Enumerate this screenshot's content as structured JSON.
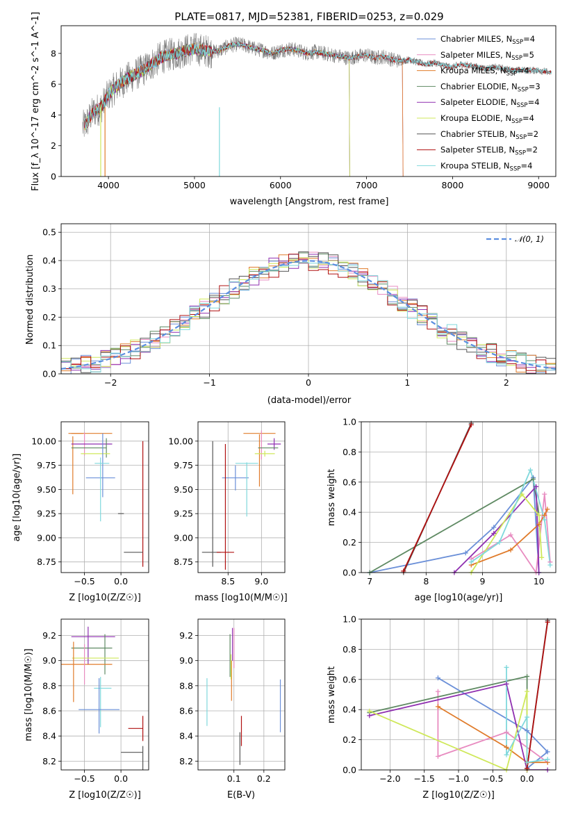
{
  "figure": {
    "title": "PLATE=0817, MJD=52381, FIBERID=0253, z=0.029"
  },
  "models": [
    {
      "id": "chabrier_miles",
      "label": "Chabrier MILES, N",
      "sub": "SSP",
      "eq": "=4",
      "color": "#6a8fd8"
    },
    {
      "id": "salpeter_miles",
      "label": "Salpeter MILES, N",
      "sub": "SSP",
      "eq": "=5",
      "color": "#e88bc0"
    },
    {
      "id": "kroupa_miles",
      "label": "Kroupa MILES, N",
      "sub": "SSP",
      "eq": "=4",
      "color": "#e07b2a"
    },
    {
      "id": "chabrier_elodie",
      "label": "Chabrier ELODIE, N",
      "sub": "SSP",
      "eq": "=3",
      "color": "#5f8a63"
    },
    {
      "id": "salpeter_elodie",
      "label": "Salpeter ELODIE, N",
      "sub": "SSP",
      "eq": "=4",
      "color": "#8f2fb0"
    },
    {
      "id": "kroupa_elodie",
      "label": "Kroupa ELODIE, N",
      "sub": "SSP",
      "eq": "=4",
      "color": "#cfe85a"
    },
    {
      "id": "chabrier_stelib",
      "label": "Chabrier STELIB, N",
      "sub": "SSP",
      "eq": "=2",
      "color": "#555555"
    },
    {
      "id": "salpeter_stelib",
      "label": "Salpeter STELIB, N",
      "sub": "SSP",
      "eq": "=2",
      "color": "#b01010"
    },
    {
      "id": "kroupa_stelib",
      "label": "Kroupa STELIB, N",
      "sub": "SSP",
      "eq": "=4",
      "color": "#7fd8dc"
    }
  ],
  "chart_data": [
    {
      "id": "spectrum",
      "type": "line",
      "xlabel": "wavelength [Angstrom, rest frame]",
      "ylabel": "Flux [f_λ 10^-17 erg cm^-2 s^-1 A^-1]",
      "xlim": [
        3450,
        9200
      ],
      "ylim": [
        0,
        9.8
      ],
      "xticks": [
        4000,
        5000,
        6000,
        7000,
        8000,
        9000
      ],
      "yticks": [
        0,
        2,
        4,
        6,
        8
      ],
      "grid": false,
      "legend": "top-right",
      "data_color": "#7a7a7a",
      "data_curve": {
        "x": [
          3700,
          3750,
          3800,
          3850,
          3900,
          3950,
          4000,
          4050,
          4100,
          4200,
          4300,
          4400,
          4500,
          4600,
          4700,
          4800,
          4900,
          5000,
          5100,
          5200,
          5300,
          5400,
          5500,
          5600,
          5700,
          5800,
          5900,
          6000,
          6100,
          6200,
          6300,
          6400,
          6500,
          6600,
          6700,
          6800,
          6900,
          7000,
          7100,
          7200,
          7300,
          7400,
          7500,
          7600,
          7700,
          7800,
          7900,
          8000,
          8100,
          8200,
          8300,
          8400,
          8500,
          8600,
          8700,
          8800,
          8900,
          9000,
          9100
        ],
        "y": [
          3.2,
          3.5,
          4.0,
          4.3,
          4.4,
          4.8,
          5.3,
          5.6,
          5.9,
          6.3,
          6.6,
          6.9,
          7.3,
          7.7,
          7.9,
          8.0,
          8.2,
          8.3,
          8.2,
          8.1,
          8.2,
          8.5,
          8.6,
          8.5,
          8.3,
          8.2,
          8.0,
          8.2,
          8.3,
          8.2,
          8.0,
          8.1,
          8.0,
          7.9,
          7.8,
          7.7,
          7.8,
          7.9,
          7.7,
          7.8,
          7.6,
          7.5,
          7.6,
          7.4,
          7.3,
          7.4,
          7.2,
          7.1,
          7.3,
          7.2,
          7.1,
          7.0,
          7.1,
          7.0,
          6.9,
          6.9,
          6.9,
          6.9,
          6.8
        ]
      },
      "model_curve_y_scale": 1.0
    },
    {
      "id": "residuals",
      "type": "line",
      "xlabel": "(data-model)/error",
      "ylabel": "Normed distribution",
      "xlim": [
        -2.5,
        2.5
      ],
      "ylim": [
        0,
        0.53
      ],
      "xticks": [
        -2,
        -1,
        0,
        1,
        2
      ],
      "yticks": [
        0,
        0.1,
        0.2,
        0.3,
        0.4,
        0.5
      ],
      "grid": true,
      "legend": "top-right",
      "reference_curve": {
        "name": "N(0,1)",
        "color": "#5b8ee0",
        "mu": 0,
        "sigma": 1
      },
      "bin_width": 0.1
    },
    {
      "id": "age_vs_Z",
      "type": "scatter",
      "xlabel": "Z [log10(Z/Z☉)]",
      "ylabel": "age [log10(age/yr)]",
      "xlim": [
        -0.82,
        0.38
      ],
      "ylim": [
        8.64,
        10.2
      ],
      "xticks": [
        -0.5,
        0.0
      ],
      "yticks": [
        8.75,
        9.0,
        9.25,
        9.5,
        9.75,
        10.0
      ],
      "grid": true,
      "points": [
        {
          "model": "kroupa_miles",
          "x": -0.62,
          "xerr": 0.1,
          "y": 10.08,
          "yerr": 0.0
        },
        {
          "model": "kroupa_miles",
          "x": -0.4,
          "xerr": 0.28,
          "y": 10.08,
          "yerr": 0.0
        },
        {
          "model": "kroupa_miles",
          "x": -0.66,
          "xerr": 0.0,
          "y": 9.75,
          "yerr": 0.3
        },
        {
          "model": "salpeter_miles",
          "x": -0.5,
          "xerr": 0.0,
          "y": 9.97,
          "yerr": 0.12
        },
        {
          "model": "salpeter_elodie",
          "x": -0.4,
          "xerr": 0.28,
          "y": 9.97,
          "yerr": 0.0
        },
        {
          "model": "chabrier_elodie",
          "x": -0.44,
          "xerr": 0.24,
          "y": 9.93,
          "yerr": 0.0
        },
        {
          "model": "chabrier_elodie",
          "x": -0.2,
          "xerr": 0.0,
          "y": 9.93,
          "yerr": 0.1
        },
        {
          "model": "kroupa_elodie",
          "x": -0.35,
          "xerr": 0.2,
          "y": 9.87,
          "yerr": 0.0
        },
        {
          "model": "chabrier_miles",
          "x": -0.25,
          "xerr": 0.0,
          "y": 9.75,
          "yerr": 0.33
        },
        {
          "model": "chabrier_miles",
          "x": -0.28,
          "xerr": 0.2,
          "y": 9.62,
          "yerr": 0.0
        },
        {
          "model": "kroupa_stelib",
          "x": -0.26,
          "xerr": 0.1,
          "y": 9.77,
          "yerr": 0.0
        },
        {
          "model": "kroupa_stelib",
          "x": -0.28,
          "xerr": 0.0,
          "y": 9.5,
          "yerr": 0.33
        },
        {
          "model": "chabrier_stelib",
          "x": 0.0,
          "xerr": 0.04,
          "y": 9.25,
          "yerr": 0.0
        },
        {
          "model": "salpeter_stelib",
          "x": 0.3,
          "xerr": 0.0,
          "y": 9.35,
          "yerr": 0.65
        },
        {
          "model": "chabrier_stelib",
          "x": 0.17,
          "xerr": 0.13,
          "y": 8.85,
          "yerr": 0.0
        }
      ]
    },
    {
      "id": "age_vs_mass",
      "type": "scatter",
      "xlabel": "mass [log10(M/M☉)]",
      "ylabel": "",
      "xlim": [
        8.05,
        9.35
      ],
      "ylim": [
        8.64,
        10.2
      ],
      "xticks": [
        8.5,
        9.0
      ],
      "yticks": [
        8.75,
        9.0,
        9.25,
        9.5,
        9.75,
        10.0
      ],
      "grid": true,
      "points": [
        {
          "model": "kroupa_miles",
          "x": 8.97,
          "xerr": 0.24,
          "y": 10.08,
          "yerr": 0.0
        },
        {
          "model": "kroupa_miles",
          "x": 8.97,
          "xerr": 0.0,
          "y": 9.8,
          "yerr": 0.27
        },
        {
          "model": "salpeter_miles",
          "x": 9.0,
          "xerr": 0.0,
          "y": 9.96,
          "yerr": 0.15
        },
        {
          "model": "salpeter_elodie",
          "x": 9.19,
          "xerr": 0.1,
          "y": 9.97,
          "yerr": 0.06
        },
        {
          "model": "chabrier_elodie",
          "x": 9.1,
          "xerr": 0.15,
          "y": 9.93,
          "yerr": 0.0
        },
        {
          "model": "kroupa_elodie",
          "x": 9.05,
          "xerr": 0.15,
          "y": 9.87,
          "yerr": 0.03
        },
        {
          "model": "chabrier_miles",
          "x": 8.61,
          "xerr": 0.2,
          "y": 9.62,
          "yerr": 0.13
        },
        {
          "model": "kroupa_stelib",
          "x": 8.78,
          "xerr": 0.17,
          "y": 9.77,
          "yerr": 0.0
        },
        {
          "model": "kroupa_stelib",
          "x": 8.78,
          "xerr": 0.0,
          "y": 9.5,
          "yerr": 0.28
        },
        {
          "model": "chabrier_stelib",
          "x": 8.27,
          "xerr": 0.0,
          "y": 9.35,
          "yerr": 0.65
        },
        {
          "model": "chabrier_stelib",
          "x": 8.25,
          "xerr": 0.14,
          "y": 8.85,
          "yerr": 0.0
        },
        {
          "model": "salpeter_stelib",
          "x": 8.46,
          "xerr": 0.0,
          "y": 9.32,
          "yerr": 0.65
        },
        {
          "model": "salpeter_stelib",
          "x": 8.46,
          "xerr": 0.13,
          "y": 8.85,
          "yerr": 0.0
        }
      ]
    },
    {
      "id": "mass_weight_vs_age",
      "type": "line",
      "xlabel": "age [log10(age/yr)]",
      "ylabel": "mass weight",
      "xlim": [
        6.85,
        10.3
      ],
      "ylim": [
        0,
        1.0
      ],
      "xticks": [
        7,
        8,
        9,
        10
      ],
      "yticks": [
        0.0,
        0.2,
        0.4,
        0.6,
        0.8,
        1.0
      ],
      "grid": true,
      "series": [
        {
          "model": "chabrier_miles",
          "x": [
            7.0,
            8.7,
            9.2,
            9.9,
            10.0
          ],
          "y": [
            0.0,
            0.13,
            0.3,
            0.63,
            0.0
          ]
        },
        {
          "model": "salpeter_miles",
          "x": [
            8.8,
            9.5,
            9.95,
            10.1,
            10.2
          ],
          "y": [
            0.09,
            0.25,
            0.0,
            0.52,
            0.07
          ]
        },
        {
          "model": "kroupa_miles",
          "x": [
            8.8,
            9.5,
            10.0,
            10.1,
            10.15
          ],
          "y": [
            0.05,
            0.15,
            0.32,
            0.38,
            0.42
          ]
        },
        {
          "model": "chabrier_elodie",
          "x": [
            7.0,
            9.9,
            10.0
          ],
          "y": [
            0.0,
            0.62,
            0.38
          ]
        },
        {
          "model": "salpeter_elodie",
          "x": [
            8.5,
            9.2,
            9.95,
            10.0
          ],
          "y": [
            0.0,
            0.26,
            0.57,
            0.0
          ]
        },
        {
          "model": "kroupa_elodie",
          "x": [
            8.8,
            9.7,
            10.0,
            10.05
          ],
          "y": [
            0.0,
            0.52,
            0.38,
            0.1
          ]
        },
        {
          "model": "chabrier_stelib",
          "x": [
            7.6,
            8.8
          ],
          "y": [
            0.0,
            0.99
          ]
        },
        {
          "model": "salpeter_stelib",
          "x": [
            7.6,
            8.8
          ],
          "y": [
            0.01,
            0.98
          ]
        },
        {
          "model": "kroupa_stelib",
          "x": [
            8.8,
            9.3,
            9.85,
            10.1,
            10.2
          ],
          "y": [
            0.07,
            0.2,
            0.68,
            0.35,
            0.05
          ]
        }
      ]
    },
    {
      "id": "mass_vs_Z",
      "type": "scatter",
      "xlabel": "Z [log10(Z/Z☉)]",
      "ylabel": "mass [log10(M/M☉)]",
      "xlim": [
        -0.82,
        0.38
      ],
      "ylim": [
        8.13,
        9.33
      ],
      "xticks": [
        -0.5,
        0.0
      ],
      "yticks": [
        8.2,
        8.4,
        8.6,
        8.8,
        9.0,
        9.2
      ],
      "grid": true,
      "points": [
        {
          "model": "salpeter_elodie",
          "x": -0.38,
          "xerr": 0.3,
          "y": 9.19,
          "yerr": 0.0
        },
        {
          "model": "salpeter_elodie",
          "x": -0.45,
          "xerr": 0.0,
          "y": 9.12,
          "yerr": 0.15
        },
        {
          "model": "chabrier_elodie",
          "x": -0.4,
          "xerr": 0.28,
          "y": 9.1,
          "yerr": 0.0
        },
        {
          "model": "chabrier_elodie",
          "x": -0.22,
          "xerr": 0.0,
          "y": 9.05,
          "yerr": 0.16
        },
        {
          "model": "kroupa_elodie",
          "x": -0.35,
          "xerr": 0.32,
          "y": 9.02,
          "yerr": 0.0
        },
        {
          "model": "kroupa_miles",
          "x": -0.47,
          "xerr": 0.35,
          "y": 8.97,
          "yerr": 0.0
        },
        {
          "model": "kroupa_miles",
          "x": -0.65,
          "xerr": 0.0,
          "y": 8.91,
          "yerr": 0.24
        },
        {
          "model": "salpeter_miles",
          "x": -0.5,
          "xerr": 0.0,
          "y": 8.97,
          "yerr": 0.16
        },
        {
          "model": "kroupa_stelib",
          "x": -0.25,
          "xerr": 0.12,
          "y": 8.78,
          "yerr": 0.0
        },
        {
          "model": "kroupa_stelib",
          "x": -0.28,
          "xerr": 0.0,
          "y": 8.67,
          "yerr": 0.2
        },
        {
          "model": "chabrier_miles",
          "x": -0.3,
          "xerr": 0.28,
          "y": 8.61,
          "yerr": 0.0
        },
        {
          "model": "chabrier_miles",
          "x": -0.3,
          "xerr": 0.0,
          "y": 8.64,
          "yerr": 0.22
        },
        {
          "model": "salpeter_stelib",
          "x": 0.3,
          "xerr": 0.0,
          "y": 8.46,
          "yerr": 0.1
        },
        {
          "model": "salpeter_stelib",
          "x": 0.2,
          "xerr": 0.1,
          "y": 8.46,
          "yerr": 0.0
        },
        {
          "model": "chabrier_stelib",
          "x": 0.3,
          "xerr": 0.0,
          "y": 8.22,
          "yerr": 0.1
        },
        {
          "model": "chabrier_stelib",
          "x": 0.15,
          "xerr": 0.15,
          "y": 8.27,
          "yerr": 0.0
        }
      ]
    },
    {
      "id": "mass_vs_ebv",
      "type": "scatter",
      "xlabel": "E(B-V)",
      "ylabel": "",
      "xlim": [
        -0.02,
        0.27
      ],
      "ylim": [
        8.13,
        9.33
      ],
      "xticks": [
        0.1,
        0.2
      ],
      "yticks": [
        8.2,
        8.4,
        8.6,
        8.8,
        9.0,
        9.2
      ],
      "grid": true,
      "points": [
        {
          "model": "salpeter_miles",
          "x": 0.1,
          "xerr": 0.0,
          "y": 9.1,
          "yerr": 0.16
        },
        {
          "model": "salpeter_elodie",
          "x": 0.095,
          "xerr": 0.0,
          "y": 9.13,
          "yerr": 0.13
        },
        {
          "model": "chabrier_elodie",
          "x": 0.087,
          "xerr": 0.0,
          "y": 9.04,
          "yerr": 0.17
        },
        {
          "model": "kroupa_miles",
          "x": 0.092,
          "xerr": 0.0,
          "y": 8.84,
          "yerr": 0.16
        },
        {
          "model": "kroupa_elodie",
          "x": 0.09,
          "xerr": 0.0,
          "y": 8.95,
          "yerr": 0.1
        },
        {
          "model": "kroupa_stelib",
          "x": 0.01,
          "xerr": 0.0,
          "y": 8.67,
          "yerr": 0.19
        },
        {
          "model": "chabrier_miles",
          "x": 0.255,
          "xerr": 0.0,
          "y": 8.64,
          "yerr": 0.21
        },
        {
          "model": "salpeter_stelib",
          "x": 0.125,
          "xerr": 0.0,
          "y": 8.44,
          "yerr": 0.12
        },
        {
          "model": "chabrier_stelib",
          "x": 0.12,
          "xerr": 0.0,
          "y": 8.3,
          "yerr": 0.13
        }
      ]
    },
    {
      "id": "mass_weight_vs_Z",
      "type": "line",
      "xlabel": "Z [log10(Z/Z☉)]",
      "ylabel": "mass weight",
      "xlim": [
        -2.42,
        0.42
      ],
      "ylim": [
        0,
        1.0
      ],
      "xticks": [
        -2.0,
        -1.5,
        -1.0,
        -0.5,
        0.0
      ],
      "yticks": [
        0.0,
        0.2,
        0.4,
        0.6,
        0.8,
        1.0
      ],
      "grid": true,
      "series": [
        {
          "model": "chabrier_miles",
          "x": [
            -1.3,
            0.0,
            0.3,
            0.0
          ],
          "y": [
            0.61,
            0.26,
            0.12,
            0.01
          ]
        },
        {
          "model": "salpeter_miles",
          "x": [
            -1.3,
            -1.3,
            -0.3,
            0.3,
            0.3
          ],
          "y": [
            0.52,
            0.09,
            0.25,
            0.05,
            0.05
          ]
        },
        {
          "model": "kroupa_miles",
          "x": [
            -1.3,
            -0.3,
            0.0,
            0.3
          ],
          "y": [
            0.42,
            0.15,
            0.05,
            0.05
          ]
        },
        {
          "model": "chabrier_elodie",
          "x": [
            -2.3,
            0.0,
            0.0
          ],
          "y": [
            0.38,
            0.62,
            0.0
          ]
        },
        {
          "model": "salpeter_elodie",
          "x": [
            -2.3,
            -0.3,
            0.0,
            0.3
          ],
          "y": [
            0.36,
            0.57,
            0.0,
            0.0
          ]
        },
        {
          "model": "kroupa_elodie",
          "x": [
            -2.3,
            -0.3,
            0.0,
            0.0
          ],
          "y": [
            0.39,
            0.0,
            0.52,
            0.0
          ]
        },
        {
          "model": "chabrier_stelib",
          "x": [
            0.0,
            0.3
          ],
          "y": [
            0.01,
            0.99
          ]
        },
        {
          "model": "salpeter_stelib",
          "x": [
            0.0,
            0.3
          ],
          "y": [
            0.01,
            0.98
          ]
        },
        {
          "model": "kroupa_stelib",
          "x": [
            -0.3,
            -0.3,
            0.0,
            0.0,
            0.3
          ],
          "y": [
            0.68,
            0.1,
            0.35,
            0.05,
            0.07
          ]
        }
      ]
    }
  ]
}
